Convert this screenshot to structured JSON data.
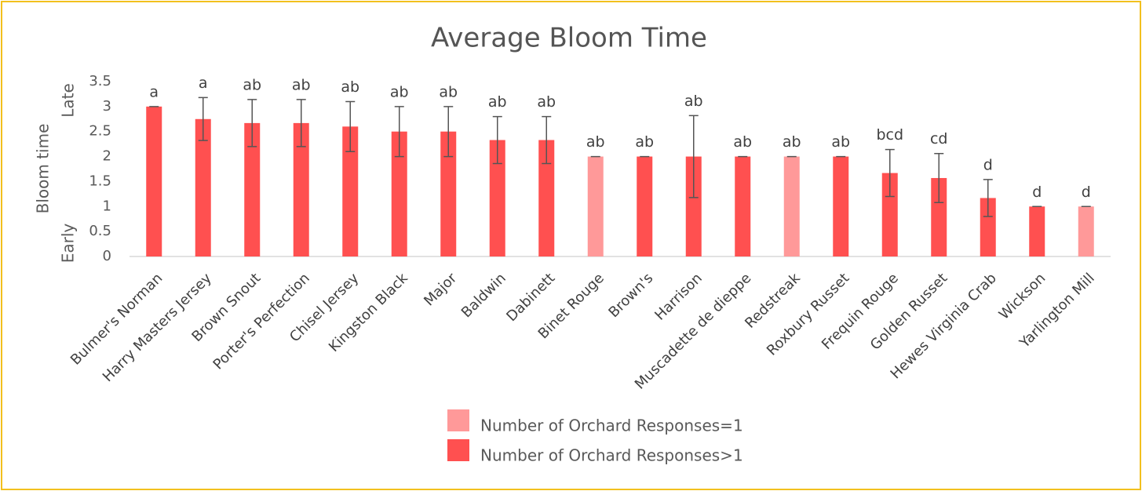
{
  "chart_data": {
    "type": "bar",
    "title": "Average Bloom Time",
    "y_label": "Bloom time",
    "y_low_label": "Early",
    "y_high_label": "Late",
    "categories": [
      "Bulmer's Norman",
      "Harry Masters Jersey",
      "Brown Snout",
      "Porter's Perfection",
      "Chisel Jersey",
      "Kingston Black",
      "Major",
      "Baldwin",
      "Dabinett",
      "Binet Rouge",
      "Brown's",
      "Harrison",
      "Muscadette de dieppe",
      "Redstreak",
      "Roxbury Russet",
      "Frequin Rouge",
      "Golden Russet",
      "Hewes Virginia Crab",
      "Wickson",
      "Yarlington Mill"
    ],
    "series": [
      {
        "name": "Number of Orchard Responses=1",
        "color": "#ff9999",
        "values": [
          null,
          null,
          null,
          null,
          null,
          null,
          null,
          null,
          null,
          2,
          null,
          null,
          null,
          2,
          null,
          null,
          null,
          null,
          null,
          1
        ],
        "errors": [
          null,
          null,
          null,
          null,
          null,
          null,
          null,
          null,
          null,
          0,
          null,
          null,
          null,
          0,
          null,
          null,
          null,
          null,
          null,
          0
        ]
      },
      {
        "name": "Number of Orchard Responses>1",
        "color": "#ff5050",
        "values": [
          3,
          2.75,
          2.67,
          2.67,
          2.6,
          2.5,
          2.5,
          2.33,
          2.33,
          null,
          2,
          2,
          2,
          null,
          2,
          1.67,
          1.57,
          1.17,
          1,
          null
        ],
        "errors": [
          0,
          0.43,
          0.47,
          0.47,
          0.5,
          0.5,
          0.5,
          0.47,
          0.47,
          null,
          0,
          0.82,
          0,
          null,
          0,
          0.47,
          0.49,
          0.37,
          0,
          null
        ]
      }
    ],
    "annotations": [
      "a",
      "a",
      "ab",
      "ab",
      "ab",
      "ab",
      "ab",
      "ab",
      "ab",
      "ab",
      "ab",
      "ab",
      "ab",
      "ab",
      "ab",
      "bcd",
      "cd",
      "d",
      "d",
      "d"
    ],
    "ylim": [
      0,
      3.5
    ],
    "yticks": [
      0,
      0.5,
      1,
      1.5,
      2,
      2.5,
      3,
      3.5
    ],
    "grid": false
  }
}
